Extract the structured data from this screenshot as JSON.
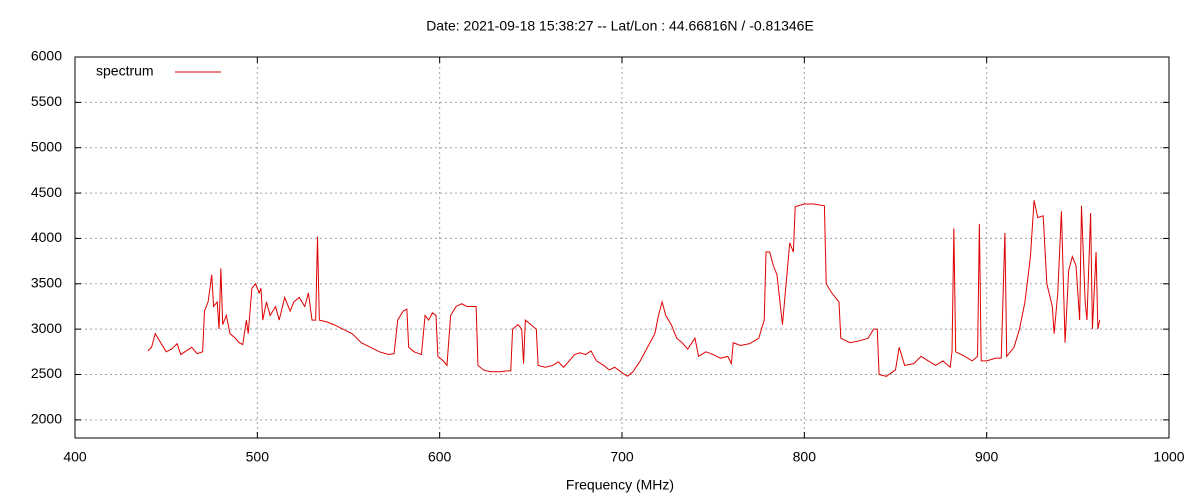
{
  "chart_data": {
    "type": "line",
    "title": "Date: 2021-09-18 15:38:27  --  Lat/Lon : 44.66816N / -0.81346E",
    "x_label": "Frequency (MHz)",
    "xlim": [
      400,
      1000
    ],
    "xticks": [
      400,
      500,
      600,
      700,
      800,
      900,
      1000
    ],
    "ylim": [
      1800,
      6000
    ],
    "yticks": [
      2000,
      2500,
      3000,
      3500,
      4000,
      4500,
      5000,
      5500,
      6000
    ],
    "grid": true,
    "legend": "top-left",
    "x": [
      440,
      442,
      444,
      447,
      450,
      453,
      456,
      458,
      461,
      464,
      467,
      470,
      471,
      473,
      475,
      476,
      478,
      479,
      480,
      481,
      483,
      485,
      488,
      490,
      492,
      494,
      495,
      497,
      499,
      501,
      502,
      503,
      505,
      507,
      510,
      512,
      515,
      518,
      520,
      523,
      526,
      528,
      530,
      532,
      533,
      534,
      538,
      542,
      547,
      552,
      557,
      562,
      567,
      572,
      575,
      577,
      580,
      582,
      583,
      586,
      590,
      592,
      594,
      596,
      598,
      599,
      602,
      604,
      606,
      609,
      612,
      615,
      618,
      620,
      621,
      624,
      628,
      633,
      637,
      639,
      640,
      643,
      645,
      646,
      647,
      650,
      653,
      654,
      658,
      662,
      665,
      668,
      671,
      674,
      677,
      680,
      683,
      686,
      690,
      693,
      696,
      700,
      703,
      706,
      710,
      714,
      718,
      720,
      722,
      724,
      727,
      730,
      733,
      736,
      740,
      742,
      746,
      750,
      754,
      758,
      760,
      761,
      765,
      770,
      775,
      778,
      779,
      781,
      783,
      785,
      788,
      790,
      792,
      794,
      795,
      800,
      805,
      811,
      812,
      815,
      819,
      820,
      825,
      830,
      835,
      838,
      840,
      841,
      845,
      850,
      852,
      855,
      860,
      864,
      868,
      872,
      876,
      880,
      881,
      882,
      883,
      888,
      892,
      895,
      896,
      897,
      900,
      905,
      908,
      910,
      911,
      915,
      918,
      921,
      924,
      926,
      928,
      931,
      933,
      936,
      937,
      939,
      941,
      943,
      945,
      947,
      949,
      951,
      952,
      954,
      955,
      957,
      958,
      960,
      961,
      962
    ],
    "series": [
      {
        "name": "spectrum",
        "color": "#e00000",
        "values": [
          2760,
          2800,
          2950,
          2850,
          2750,
          2780,
          2840,
          2720,
          2760,
          2800,
          2730,
          2750,
          3200,
          3300,
          3600,
          3250,
          3300,
          3000,
          3670,
          3050,
          3150,
          2950,
          2900,
          2850,
          2830,
          3100,
          2950,
          3450,
          3500,
          3400,
          3450,
          3100,
          3300,
          3150,
          3250,
          3100,
          3350,
          3200,
          3300,
          3350,
          3250,
          3400,
          3100,
          3100,
          4020,
          3100,
          3080,
          3050,
          3000,
          2950,
          2850,
          2800,
          2750,
          2720,
          2730,
          3100,
          3200,
          3220,
          2800,
          2750,
          2720,
          3150,
          3100,
          3180,
          3150,
          2700,
          2650,
          2600,
          3150,
          3250,
          3280,
          3250,
          3250,
          3250,
          2600,
          2550,
          2530,
          2530,
          2540,
          2540,
          3000,
          3050,
          3000,
          2620,
          3100,
          3050,
          3000,
          2600,
          2580,
          2600,
          2640,
          2580,
          2650,
          2720,
          2740,
          2720,
          2760,
          2650,
          2600,
          2550,
          2580,
          2520,
          2480,
          2530,
          2650,
          2800,
          2950,
          3150,
          3300,
          3150,
          3050,
          2900,
          2850,
          2780,
          2900,
          2700,
          2750,
          2720,
          2680,
          2700,
          2620,
          2850,
          2820,
          2840,
          2900,
          3100,
          3850,
          3850,
          3700,
          3600,
          3050,
          3500,
          3950,
          3850,
          4350,
          4380,
          4380,
          4360,
          3500,
          3400,
          3300,
          2900,
          2850,
          2870,
          2900,
          3000,
          3000,
          2500,
          2480,
          2550,
          2800,
          2600,
          2620,
          2700,
          2650,
          2600,
          2650,
          2580,
          2750,
          4110,
          2750,
          2700,
          2650,
          2700,
          4160,
          2650,
          2650,
          2680,
          2680,
          4060,
          2700,
          2800,
          3000,
          3300,
          3800,
          4420,
          4230,
          4250,
          3500,
          3250,
          2950,
          3400,
          4300,
          2850,
          3650,
          3800,
          3700,
          3100,
          4360,
          3300,
          3100,
          4280,
          3000,
          3850,
          3000,
          3100
        ]
      }
    ]
  }
}
